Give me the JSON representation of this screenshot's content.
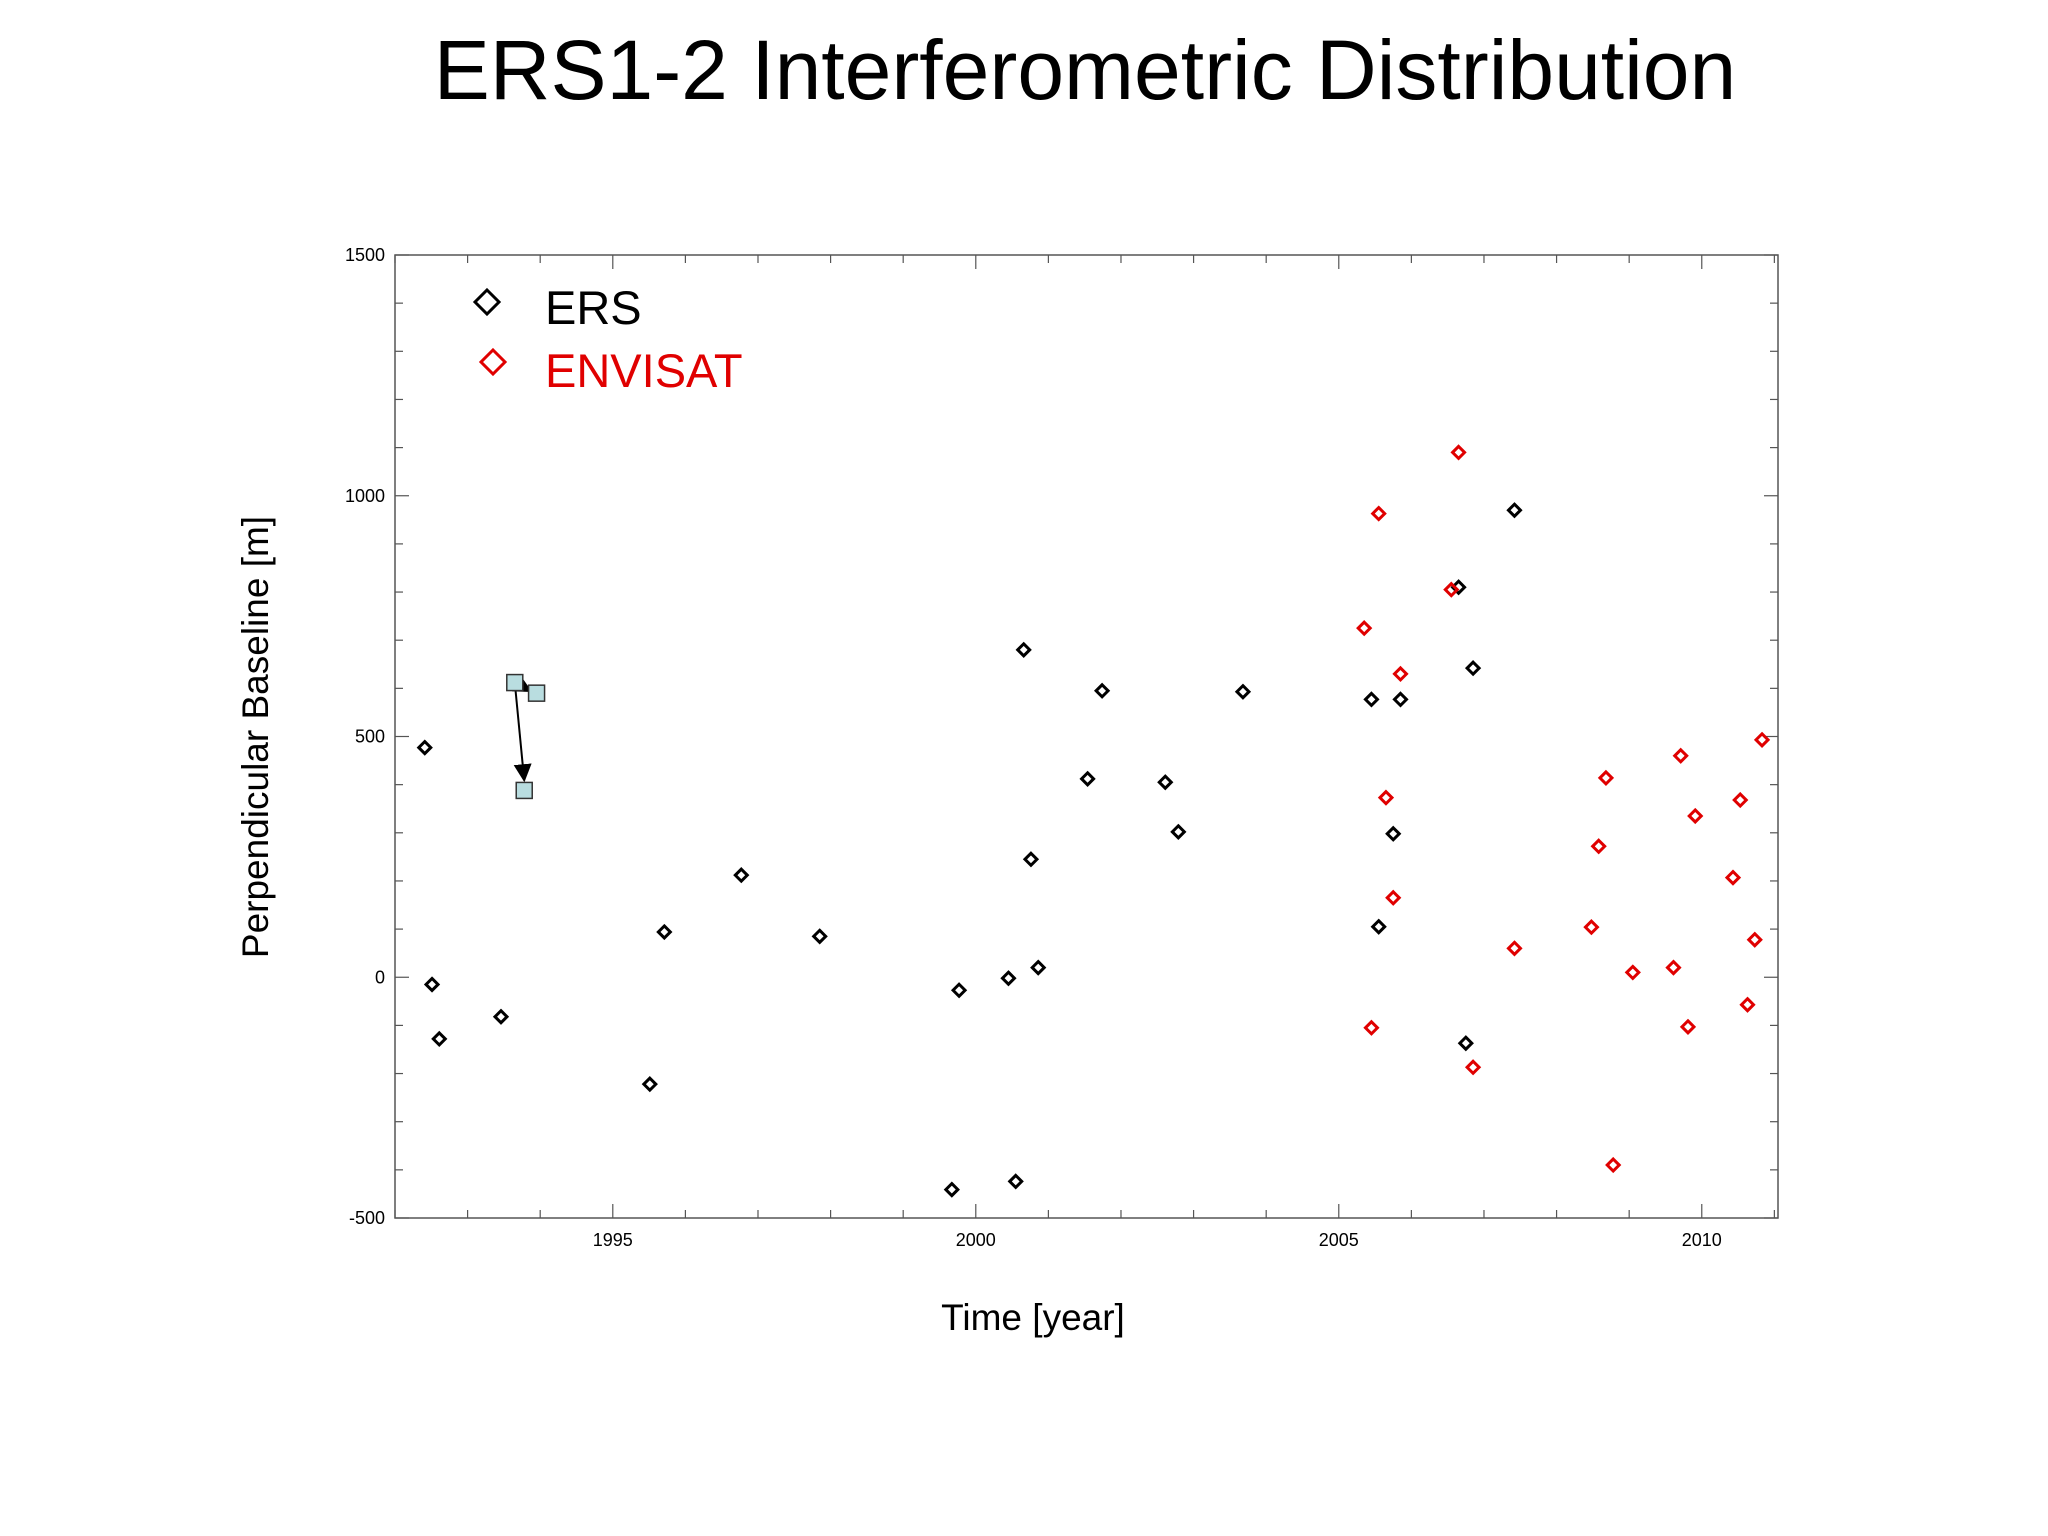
{
  "slide": {
    "title": "ERS1-2 Interferometric Distribution"
  },
  "chart_data": {
    "type": "scatter",
    "title": "",
    "xlabel": "Time [year]",
    "ylabel": "Perpendicular Baseline [m]",
    "xlim": [
      1992.0,
      2011.05
    ],
    "ylim": [
      -500,
      1500
    ],
    "x_ticks": [
      1995,
      2000,
      2005,
      2010
    ],
    "x_tick_labels": [
      "1995",
      "2000",
      "2005",
      "2010"
    ],
    "y_ticks": [
      -500,
      0,
      500,
      1000,
      1500
    ],
    "y_tick_labels": [
      "-500",
      "0",
      "500",
      "1000",
      "1500"
    ],
    "legend_position": "top-left",
    "grid": false,
    "marker": "diamond",
    "series": [
      {
        "name": "ERS",
        "color": "#000000",
        "points": [
          [
            1992.41,
            477
          ],
          [
            1992.51,
            -15
          ],
          [
            1992.61,
            -128
          ],
          [
            1993.46,
            -82
          ],
          [
            1995.51,
            -222
          ],
          [
            1995.71,
            94
          ],
          [
            1996.77,
            212
          ],
          [
            1997.85,
            85
          ],
          [
            1999.67,
            -441
          ],
          [
            1999.77,
            -27
          ],
          [
            2000.45,
            -2
          ],
          [
            2000.55,
            -424
          ],
          [
            2000.66,
            680
          ],
          [
            2000.76,
            245
          ],
          [
            2000.86,
            20
          ],
          [
            2001.54,
            412
          ],
          [
            2001.74,
            595
          ],
          [
            2002.61,
            405
          ],
          [
            2002.79,
            302
          ],
          [
            2003.68,
            593
          ],
          [
            2005.45,
            577
          ],
          [
            2005.55,
            105
          ],
          [
            2005.75,
            298
          ],
          [
            2005.85,
            577
          ],
          [
            2006.65,
            810
          ],
          [
            2006.75,
            -137
          ],
          [
            2006.85,
            642
          ],
          [
            2007.42,
            970
          ]
        ]
      },
      {
        "name": "ENVISAT",
        "color": "#e00000",
        "points": [
          [
            2005.35,
            725
          ],
          [
            2005.45,
            -105
          ],
          [
            2005.55,
            963
          ],
          [
            2005.65,
            373
          ],
          [
            2005.75,
            165
          ],
          [
            2005.85,
            630
          ],
          [
            2006.55,
            805
          ],
          [
            2006.65,
            1090
          ],
          [
            2006.85,
            -187
          ],
          [
            2007.42,
            60
          ],
          [
            2008.48,
            104
          ],
          [
            2008.58,
            272
          ],
          [
            2008.68,
            414
          ],
          [
            2008.78,
            -390
          ],
          [
            2009.05,
            10
          ],
          [
            2009.61,
            20
          ],
          [
            2009.71,
            460
          ],
          [
            2009.81,
            -103
          ],
          [
            2009.91,
            335
          ],
          [
            2010.43,
            207
          ],
          [
            2010.53,
            368
          ],
          [
            2010.63,
            -57
          ],
          [
            2010.73,
            78
          ],
          [
            2010.83,
            493
          ]
        ]
      }
    ],
    "highlight_points": {
      "color": "#b9dde0",
      "points": [
        [
          1993.65,
          612
        ],
        [
          1993.95,
          590
        ],
        [
          1993.78,
          388
        ]
      ]
    }
  }
}
